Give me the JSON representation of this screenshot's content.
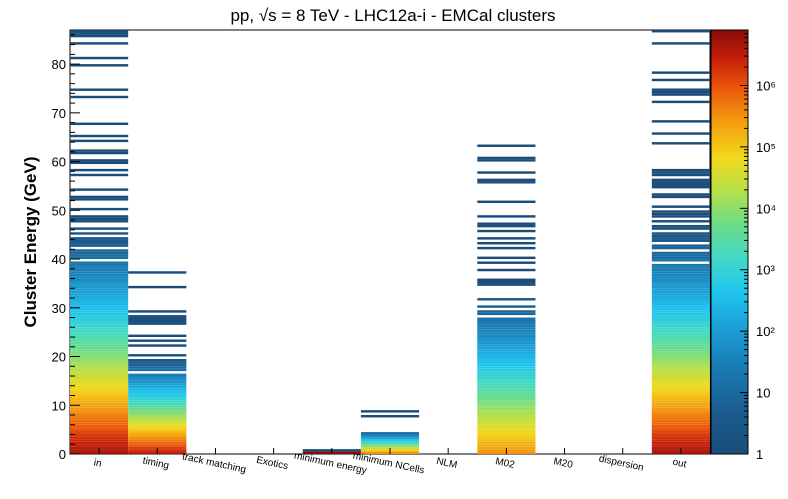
{
  "title": "pp, √s = 8 TeV - LHC12a-i - EMCal clusters",
  "chart_data": {
    "type": "heatmap",
    "title": "pp, √s = 8 TeV - LHC12a-i - EMCal clusters",
    "xlabel": "",
    "ylabel": "Cluster Energy (GeV)",
    "ylim": [
      0,
      87
    ],
    "y_ticks": [
      0,
      10,
      20,
      30,
      40,
      50,
      60,
      70,
      80
    ],
    "categories": [
      "in",
      "timing",
      "track matching",
      "Exotics",
      "minimum energy",
      "minimum NCells",
      "NLM",
      "M02",
      "M20",
      "dispersion",
      "out"
    ],
    "colorbar": {
      "scale": "log",
      "range": [
        1,
        8000000
      ],
      "tick_labels": [
        "1",
        "10",
        "10²",
        "10³",
        "10⁴",
        "10⁵",
        "10⁶"
      ],
      "tick_values": [
        1,
        10,
        100,
        1000,
        10000,
        100000,
        1000000
      ]
    },
    "column_max_energy": [
      87,
      37.5,
      0,
      0,
      0.8,
      9,
      0,
      63.5,
      0,
      0,
      87
    ],
    "column_counts_at_low_energy": [
      5000000,
      3000000,
      0,
      0,
      8000000,
      300000,
      0,
      300000,
      0,
      0,
      5000000
    ],
    "grid": false,
    "colormap": "rainbow"
  }
}
